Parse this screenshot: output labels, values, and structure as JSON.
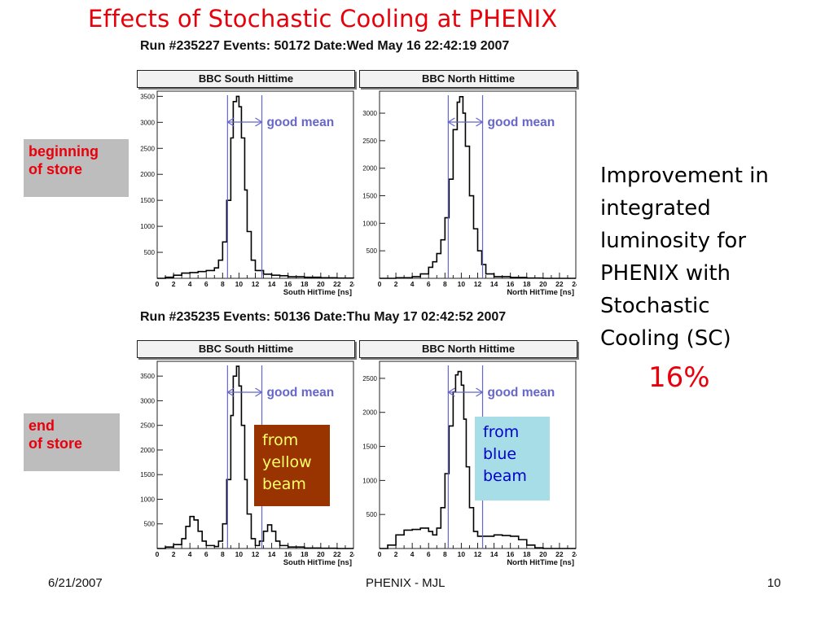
{
  "slide": {
    "title": "Effects of Stochastic Cooling at PHENIX",
    "run_headers": [
      "Run #235227 Events: 50172 Date:Wed May 16 22:42:19 2007",
      "Run #235235 Events: 50136 Date:Thu May 17 02:42:52 2007"
    ],
    "labels": {
      "beginning": [
        "beginning",
        "of store"
      ],
      "end": [
        "end",
        "of store"
      ],
      "yellow": [
        "from",
        "yellow",
        "beam"
      ],
      "blue": [
        "from",
        "blue",
        "beam"
      ]
    },
    "improvement_lines": [
      "Improvement in",
      "integrated",
      "luminosity for",
      "PHENIX with",
      "Stochastic",
      "Cooling (SC)"
    ],
    "improvement_value": "16%",
    "footer": {
      "date": "6/21/2007",
      "center": "PHENIX - MJL",
      "page": "10"
    },
    "colors": {
      "title": "#e8000b",
      "mean_lines": "#6666cc",
      "yellow_box": "#993300",
      "blue_box": "#a6dde6"
    }
  },
  "chart_data": [
    {
      "type": "line",
      "title": "BBC South Hittime",
      "xlabel": "South HitTime [ns]",
      "xlim": [
        0,
        24
      ],
      "ylim": [
        0,
        3600
      ],
      "xticks": [
        0,
        2,
        4,
        6,
        8,
        10,
        12,
        14,
        16,
        18,
        20,
        22,
        24
      ],
      "yticks": [
        500,
        1000,
        1500,
        2000,
        2500,
        3000,
        3500
      ],
      "mean_window": [
        8.6,
        12.8
      ],
      "annotation": "good mean",
      "x": [
        0,
        1,
        2,
        3,
        4,
        5,
        6,
        7,
        7.5,
        8,
        8.5,
        9,
        9.3,
        9.7,
        10,
        10.3,
        10.7,
        11,
        11.5,
        12,
        13,
        14,
        15,
        16,
        18,
        20,
        22,
        24
      ],
      "y": [
        0,
        20,
        60,
        100,
        110,
        130,
        150,
        200,
        350,
        700,
        1500,
        2700,
        3400,
        3500,
        3300,
        2700,
        1700,
        900,
        350,
        150,
        80,
        60,
        50,
        30,
        20,
        10,
        5,
        0
      ]
    },
    {
      "type": "line",
      "title": "BBC North Hittime",
      "xlabel": "North HitTime [ns]",
      "xlim": [
        0,
        24
      ],
      "ylim": [
        0,
        3400
      ],
      "xticks": [
        0,
        2,
        4,
        6,
        8,
        10,
        12,
        14,
        16,
        18,
        20,
        22,
        24
      ],
      "yticks": [
        500,
        1000,
        1500,
        2000,
        2500,
        3000
      ],
      "mean_window": [
        8.4,
        12.6
      ],
      "annotation": "good mean",
      "x": [
        0,
        2,
        4,
        5,
        6,
        6.5,
        7,
        7.5,
        8,
        8.5,
        9,
        9.5,
        9.8,
        10.2,
        10.5,
        11,
        11.5,
        12,
        12.5,
        13,
        14,
        16,
        18,
        20,
        22,
        24
      ],
      "y": [
        0,
        10,
        30,
        80,
        200,
        300,
        450,
        700,
        1100,
        1800,
        2700,
        3200,
        3300,
        3000,
        2400,
        1500,
        900,
        500,
        250,
        80,
        30,
        15,
        5,
        0,
        0,
        0
      ]
    },
    {
      "type": "line",
      "title": "BBC South Hittime",
      "xlabel": "South HitTime [ns]",
      "xlim": [
        0,
        24
      ],
      "ylim": [
        0,
        3800
      ],
      "xticks": [
        0,
        2,
        4,
        6,
        8,
        10,
        12,
        14,
        16,
        18,
        20,
        22,
        24
      ],
      "yticks": [
        500,
        1000,
        1500,
        2000,
        2500,
        3000,
        3500
      ],
      "mean_window": [
        8.6,
        12.8
      ],
      "annotation": "good mean",
      "x": [
        0,
        1,
        2,
        3,
        3.5,
        4,
        4.5,
        5,
        5.5,
        6,
        7,
        7.5,
        8,
        8.5,
        9,
        9.3,
        9.7,
        10,
        10.3,
        10.7,
        11,
        11.5,
        12,
        12.5,
        13,
        13.5,
        14,
        14.5,
        15,
        16,
        18,
        20,
        22,
        24
      ],
      "y": [
        0,
        30,
        80,
        200,
        450,
        650,
        580,
        350,
        150,
        60,
        40,
        150,
        500,
        1400,
        2700,
        3500,
        3700,
        3300,
        2500,
        1400,
        700,
        200,
        60,
        150,
        350,
        480,
        350,
        150,
        60,
        30,
        10,
        5,
        0,
        0
      ]
    },
    {
      "type": "line",
      "title": "BBC North Hittime",
      "xlabel": "North HitTime [ns]",
      "xlim": [
        0,
        24
      ],
      "ylim": [
        0,
        2750
      ],
      "xticks": [
        0,
        2,
        4,
        6,
        8,
        10,
        12,
        14,
        16,
        18,
        20,
        22,
        24
      ],
      "yticks": [
        500,
        1000,
        1500,
        2000,
        2500
      ],
      "mean_window": [
        8.4,
        12.6
      ],
      "annotation": "good mean",
      "x": [
        0,
        1,
        2,
        3,
        4,
        5,
        6,
        6.5,
        7,
        7.5,
        8,
        8.5,
        9,
        9.3,
        9.6,
        10,
        10.3,
        10.6,
        11,
        11.5,
        12,
        13,
        14,
        15,
        16,
        17,
        18,
        19,
        20,
        22,
        24
      ],
      "y": [
        0,
        50,
        200,
        270,
        280,
        300,
        250,
        200,
        300,
        600,
        1100,
        1800,
        2300,
        2550,
        2600,
        2400,
        1900,
        1200,
        600,
        250,
        180,
        180,
        200,
        190,
        180,
        130,
        50,
        10,
        0,
        0,
        0
      ]
    }
  ]
}
